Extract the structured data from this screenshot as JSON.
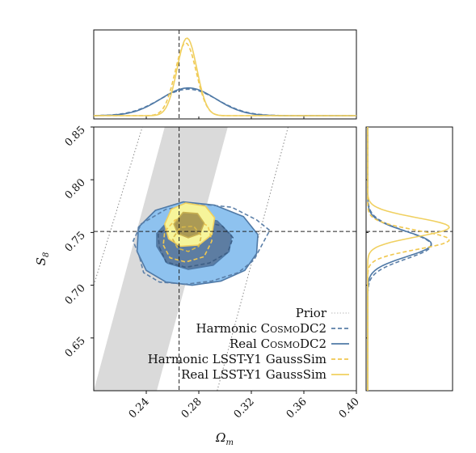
{
  "chart_data": {
    "type": "corner-contour",
    "params": {
      "x": {
        "symbol": "Ω",
        "subscript": "m",
        "ticks": [
          0.24,
          0.28,
          0.32,
          0.36,
          0.4
        ],
        "tick_labels": [
          "0.24",
          "0.28",
          "0.32",
          "0.36",
          "0.40"
        ],
        "lim": [
          0.2,
          0.4
        ]
      },
      "y": {
        "symbol": "S",
        "subscript": "8",
        "ticks": [
          0.65,
          0.7,
          0.75,
          0.8,
          0.85
        ],
        "tick_labels": [
          "0.65",
          "0.70",
          "0.75",
          "0.80",
          "0.85"
        ],
        "lim": [
          0.6,
          0.85
        ]
      }
    },
    "truth": {
      "omega_m": 0.265,
      "s8": 0.751
    },
    "prior": {
      "band": {
        "lower": {
          "omega_m_at_s8_060": 0.2,
          "omega_m_at_s8_085": 0.254
        },
        "upper": {
          "omega_m_at_s8_060": 0.248,
          "omega_m_at_s8_085": 0.302
        }
      },
      "dotted_lines": [
        {
          "from": [
            0.2,
            0.7
          ],
          "to": [
            0.237,
            0.85
          ]
        },
        {
          "from": [
            0.294,
            0.6
          ],
          "to": [
            0.348,
            0.85
          ]
        }
      ]
    },
    "series": [
      {
        "name": "Prior",
        "color": "#bbbbbb",
        "style": "dotted"
      },
      {
        "name": "Harmonic CosmoDC2",
        "color": "#5b7fa8",
        "style": "dashed",
        "omega_m_mean": 0.272,
        "omega_m_sigma": 0.022,
        "s8_mean": 0.738,
        "s8_sigma": 0.013,
        "contours": {
          "outer": [
            [
              0.235,
              0.726
            ],
            [
              0.238,
              0.712
            ],
            [
              0.25,
              0.703
            ],
            [
              0.27,
              0.701
            ],
            [
              0.29,
              0.704
            ],
            [
              0.31,
              0.712
            ],
            [
              0.322,
              0.724
            ],
            [
              0.328,
              0.738
            ],
            [
              0.334,
              0.752
            ],
            [
              0.324,
              0.762
            ],
            [
              0.305,
              0.774
            ],
            [
              0.28,
              0.777
            ],
            [
              0.255,
              0.772
            ],
            [
              0.236,
              0.758
            ],
            [
              0.23,
              0.742
            ]
          ],
          "inner": [
            [
              0.25,
              0.736
            ],
            [
              0.255,
              0.722
            ],
            [
              0.27,
              0.717
            ],
            [
              0.288,
              0.721
            ],
            [
              0.302,
              0.731
            ],
            [
              0.306,
              0.745
            ],
            [
              0.298,
              0.756
            ],
            [
              0.28,
              0.762
            ],
            [
              0.26,
              0.758
            ],
            [
              0.249,
              0.748
            ]
          ]
        }
      },
      {
        "name": "Real CosmoDC2",
        "color": "#4f79a6",
        "style": "solid",
        "omega_m_mean": 0.272,
        "omega_m_sigma": 0.021,
        "s8_mean": 0.739,
        "s8_sigma": 0.012,
        "contours": {
          "outer": [
            [
              0.233,
              0.732
            ],
            [
              0.24,
              0.714
            ],
            [
              0.255,
              0.703
            ],
            [
              0.275,
              0.7
            ],
            [
              0.297,
              0.704
            ],
            [
              0.315,
              0.714
            ],
            [
              0.324,
              0.73
            ],
            [
              0.325,
              0.748
            ],
            [
              0.314,
              0.765
            ],
            [
              0.292,
              0.776
            ],
            [
              0.268,
              0.779
            ],
            [
              0.247,
              0.771
            ],
            [
              0.234,
              0.755
            ]
          ],
          "inner": [
            [
              0.248,
              0.737
            ],
            [
              0.256,
              0.721
            ],
            [
              0.272,
              0.715
            ],
            [
              0.291,
              0.719
            ],
            [
              0.303,
              0.732
            ],
            [
              0.305,
              0.747
            ],
            [
              0.294,
              0.761
            ],
            [
              0.274,
              0.766
            ],
            [
              0.256,
              0.76
            ],
            [
              0.248,
              0.749
            ]
          ]
        }
      },
      {
        "name": "Harmonic LSST-Y1 GaussSim",
        "color": "#f0c850",
        "style": "dashed",
        "omega_m_mean": 0.27,
        "omega_m_sigma": 0.008,
        "s8_mean": 0.743,
        "s8_sigma": 0.009,
        "contours": {
          "outer": [
            [
              0.253,
              0.738
            ],
            [
              0.258,
              0.726
            ],
            [
              0.27,
              0.722
            ],
            [
              0.284,
              0.727
            ],
            [
              0.29,
              0.742
            ],
            [
              0.287,
              0.756
            ],
            [
              0.275,
              0.765
            ],
            [
              0.262,
              0.762
            ],
            [
              0.254,
              0.751
            ]
          ],
          "inner": [
            [
              0.26,
              0.744
            ],
            [
              0.264,
              0.735
            ],
            [
              0.272,
              0.732
            ],
            [
              0.28,
              0.737
            ],
            [
              0.282,
              0.747
            ],
            [
              0.276,
              0.756
            ],
            [
              0.266,
              0.755
            ]
          ]
        }
      },
      {
        "name": "Real LSST-Y1 GaussSim",
        "color": "#f0d060",
        "style": "solid",
        "omega_m_mean": 0.271,
        "omega_m_sigma": 0.0075,
        "s8_mean": 0.755,
        "s8_sigma": 0.009,
        "contours": {
          "outer": [
            [
              0.254,
              0.758
            ],
            [
              0.257,
              0.744
            ],
            [
              0.266,
              0.737
            ],
            [
              0.28,
              0.738
            ],
            [
              0.29,
              0.748
            ],
            [
              0.292,
              0.764
            ],
            [
              0.285,
              0.775
            ],
            [
              0.27,
              0.778
            ],
            [
              0.259,
              0.772
            ]
          ],
          "inner": [
            [
              0.261,
              0.758
            ],
            [
              0.264,
              0.749
            ],
            [
              0.272,
              0.745
            ],
            [
              0.281,
              0.749
            ],
            [
              0.284,
              0.759
            ],
            [
              0.279,
              0.768
            ],
            [
              0.268,
              0.769
            ]
          ]
        }
      }
    ],
    "legend": {
      "placement": "bottom-right",
      "entries": [
        {
          "parts": [
            {
              "text": "Prior"
            }
          ]
        },
        {
          "parts": [
            {
              "text": "Harmonic "
            },
            {
              "text": "C",
              "sc": false
            },
            {
              "text": "OSMO",
              "sc": true
            },
            {
              "text": "DC2"
            }
          ]
        },
        {
          "parts": [
            {
              "text": "Real "
            },
            {
              "text": "C",
              "sc": false
            },
            {
              "text": "OSMO",
              "sc": true
            },
            {
              "text": "DC2"
            }
          ]
        },
        {
          "parts": [
            {
              "text": "Harmonic LSST-Y1 GaussSim"
            }
          ]
        },
        {
          "parts": [
            {
              "text": "Real LSST-Y1 GaussSim"
            }
          ]
        }
      ]
    },
    "fill_colors": {
      "cosmodc2_outer": "#8ec2ef",
      "cosmodc2_inner": "#5d7da2",
      "lsst_outer": "#f6f49a",
      "lsst_inner": "#ab9a55",
      "prior_band": "#dadada"
    }
  }
}
